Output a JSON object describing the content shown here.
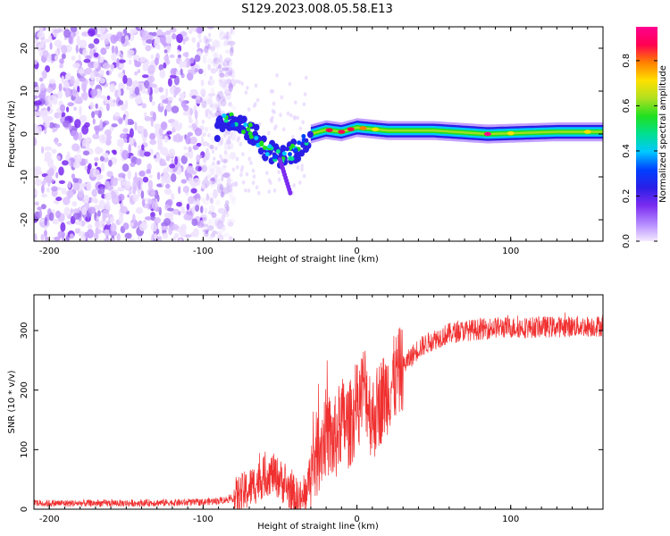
{
  "title": "S129.2023.008.05.58.E13",
  "chart_data": [
    {
      "type": "heatmap",
      "xlabel": "Height of straight line (km)",
      "ylabel": "Frequency (Hz)",
      "xlim": [
        -210,
        160
      ],
      "ylim": [
        -25,
        25
      ],
      "xticks": [
        -200,
        -100,
        0,
        100
      ],
      "yticks": [
        20,
        10,
        0,
        -10,
        -20
      ],
      "colorbar": {
        "label": "Normalized spectral amplitude",
        "range": [
          0,
          0.95
        ],
        "ticks": [
          0.0,
          0.2,
          0.4,
          0.6,
          0.8
        ],
        "colormap": [
          "#f4eaff",
          "#b388ff",
          "#7b2cf0",
          "#2a1ee6",
          "#0040ff",
          "#00c8ff",
          "#00e090",
          "#20e020",
          "#b0e020",
          "#ffe000",
          "#ff8000",
          "#ff0050",
          "#ff0090"
        ]
      },
      "ridge": [
        {
          "x": -90,
          "f": 2.5
        },
        {
          "x": -80,
          "f": 3.5
        },
        {
          "x": -70,
          "f": 1.0
        },
        {
          "x": -60,
          "f": -3.0
        },
        {
          "x": -50,
          "f": -5.5
        },
        {
          "x": -40,
          "f": -4.0
        },
        {
          "x": -35,
          "f": -2.0
        },
        {
          "x": -30,
          "f": 0.0
        },
        {
          "x": -20,
          "f": 1.0
        },
        {
          "x": -10,
          "f": 0.5
        },
        {
          "x": 0,
          "f": 1.5
        },
        {
          "x": 20,
          "f": 0.8
        },
        {
          "x": 50,
          "f": 0.8
        },
        {
          "x": 85,
          "f": 0.0
        },
        {
          "x": 130,
          "f": 0.5
        },
        {
          "x": 160,
          "f": 0.5
        }
      ],
      "noise_region": {
        "x_from": -210,
        "x_to": -100
      }
    },
    {
      "type": "line",
      "xlabel": "Height of straight line (km)",
      "ylabel": "SNR (10 * v/v)",
      "xlim": [
        -210,
        160
      ],
      "ylim": [
        0,
        360
      ],
      "xticks": [
        -200,
        -100,
        0,
        100
      ],
      "yticks": [
        0,
        100,
        200,
        300
      ],
      "color": "#f03030",
      "series": [
        {
          "x": [
            -210,
            -190,
            -170,
            -150,
            -130,
            -110,
            -100,
            -90,
            -80,
            -75,
            -70,
            -65,
            -60,
            -55,
            -50,
            -45,
            -40,
            -35,
            -30,
            -25,
            -20,
            -15,
            -10,
            -5,
            0,
            5,
            10,
            15,
            20,
            25,
            30,
            35,
            40,
            50,
            60,
            70,
            80,
            90,
            100,
            110,
            120,
            130,
            140,
            150,
            160
          ],
          "y": [
            10,
            10,
            10,
            10,
            11,
            11,
            12,
            14,
            18,
            25,
            35,
            45,
            55,
            60,
            50,
            35,
            20,
            12,
            60,
            100,
            130,
            110,
            150,
            140,
            170,
            210,
            150,
            180,
            200,
            220,
            240,
            255,
            270,
            285,
            295,
            300,
            302,
            305,
            305,
            305,
            306,
            306,
            307,
            307,
            308
          ]
        }
      ]
    }
  ]
}
